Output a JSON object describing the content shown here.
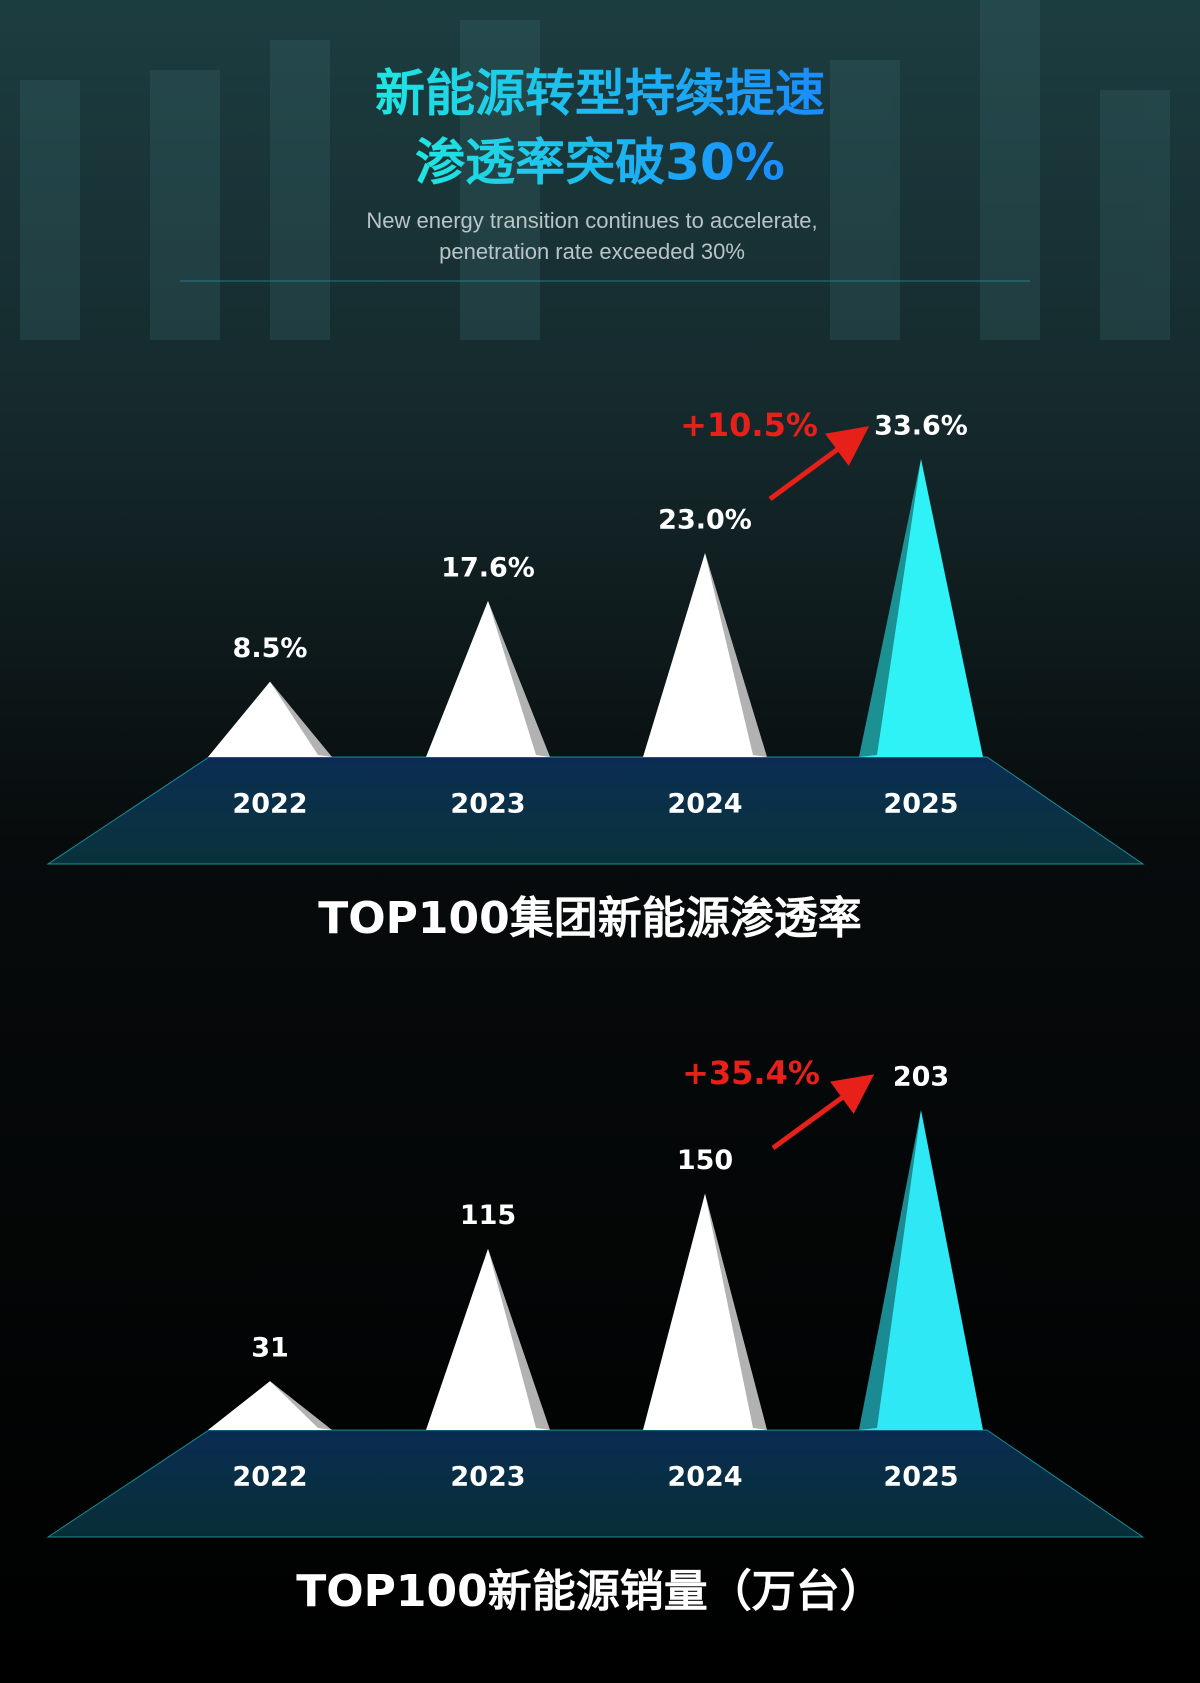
{
  "header": {
    "title_line1": "新能源转型持续提速",
    "title_line2": "渗透率突破30%",
    "subtitle_line1": "New energy transition continues to accelerate,",
    "subtitle_line2": "penetration rate exceeded 30%"
  },
  "chart_data": [
    {
      "type": "pyramid",
      "title": "TOP100集团新能源渗透率",
      "categories": [
        "2022",
        "2023",
        "2024",
        "2025"
      ],
      "values": [
        8.5,
        17.6,
        23.0,
        33.6
      ],
      "value_labels": [
        "8.5%",
        "17.6%",
        "23.0%",
        "33.6%"
      ],
      "colors": [
        "#ffffff",
        "#ffffff",
        "#ffffff",
        "#2ef2f6"
      ],
      "annotation": "+10.5%",
      "annotation_color": "#e8201a"
    },
    {
      "type": "pyramid",
      "title": "TOP100新能源销量（万台）",
      "categories": [
        "2022",
        "2023",
        "2024",
        "2025"
      ],
      "values": [
        31,
        115,
        150,
        203
      ],
      "colors": [
        "#ffffff",
        "#ffffff",
        "#ffffff",
        "#2ee8f6"
      ],
      "annotation": "+35.4%",
      "annotation_color": "#e8201a"
    }
  ]
}
